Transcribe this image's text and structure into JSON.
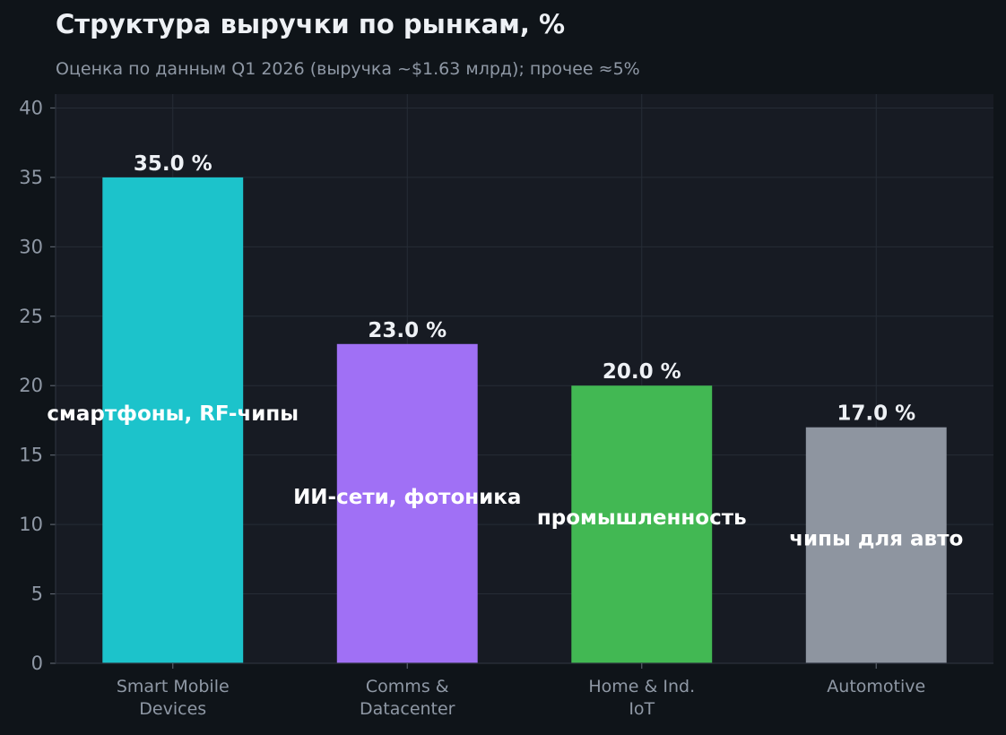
{
  "chart_data": {
    "type": "bar",
    "title": "Структура выручки по рынкам, %",
    "subtitle": "Оценка по данным Q1 2026 (выручка ~$1.63 млрд); прочее ≈5%",
    "categories": [
      [
        "Smart Mobile",
        "Devices"
      ],
      [
        "Comms &",
        "Datacenter"
      ],
      [
        "Home & Ind.",
        "IoT"
      ],
      [
        "Automotive"
      ]
    ],
    "values": [
      35.0,
      23.0,
      20.0,
      17.0
    ],
    "value_labels": [
      "35.0 %",
      "23.0 %",
      "20.0 %",
      "17.0 %"
    ],
    "annotations": [
      "смартфоны, RF-чипы",
      "ИИ-сети, фотоника",
      "промышленность",
      "чипы для авто"
    ],
    "annotation_values": [
      17.5,
      11.5,
      10.0,
      8.5
    ],
    "colors": [
      "#1cc3cb",
      "#a070f5",
      "#42b853",
      "#8e95a0"
    ],
    "ylim": [
      0,
      41
    ],
    "yticks": [
      "0",
      "5",
      "10",
      "15",
      "20",
      "25",
      "30",
      "35",
      "40"
    ],
    "grid": true,
    "xlabel": "",
    "ylabel": ""
  }
}
